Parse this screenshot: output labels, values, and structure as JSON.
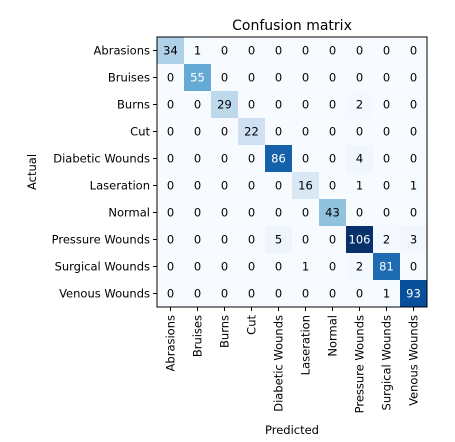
{
  "chart_data": {
    "type": "heatmap",
    "title": "Confusion matrix",
    "xlabel": "Predicted",
    "ylabel": "Actual",
    "colormap": "Blues",
    "text_color_light": "#ffffff",
    "text_color_dark": "#000000",
    "color_low": "#f7fbff",
    "color_high": "#08306b",
    "labels": [
      "Abrasions",
      "Bruises",
      "Burns",
      "Cut",
      "Diabetic Wounds",
      "Laseration",
      "Normal",
      "Pressure Wounds",
      "Surgical Wounds",
      "Venous Wounds"
    ],
    "matrix": [
      [
        34,
        1,
        0,
        0,
        0,
        0,
        0,
        0,
        0,
        0
      ],
      [
        0,
        55,
        0,
        0,
        0,
        0,
        0,
        0,
        0,
        0
      ],
      [
        0,
        0,
        29,
        0,
        0,
        0,
        0,
        2,
        0,
        0
      ],
      [
        0,
        0,
        0,
        22,
        0,
        0,
        0,
        0,
        0,
        0
      ],
      [
        0,
        0,
        0,
        0,
        86,
        0,
        0,
        4,
        0,
        0
      ],
      [
        0,
        0,
        0,
        0,
        0,
        16,
        0,
        1,
        0,
        1
      ],
      [
        0,
        0,
        0,
        0,
        0,
        0,
        43,
        0,
        0,
        0
      ],
      [
        0,
        0,
        0,
        0,
        5,
        0,
        0,
        106,
        2,
        3
      ],
      [
        0,
        0,
        0,
        0,
        0,
        1,
        0,
        2,
        81,
        0
      ],
      [
        0,
        0,
        0,
        0,
        0,
        0,
        0,
        0,
        1,
        93
      ]
    ]
  }
}
